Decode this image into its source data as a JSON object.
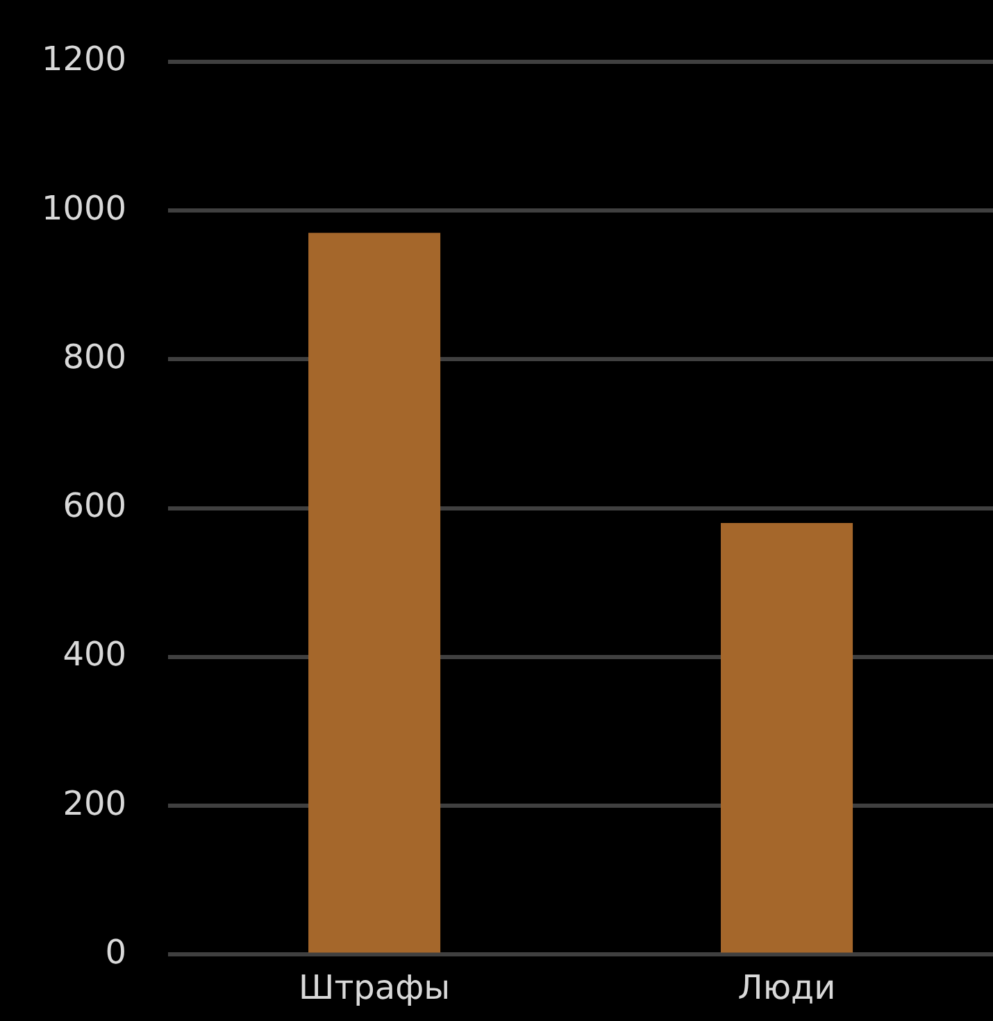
{
  "chart_data": {
    "type": "bar",
    "categories": [
      "Штрафы",
      "Люди"
    ],
    "series": [
      {
        "color": "#a5672b",
        "values": [
          970,
          580
        ]
      }
    ],
    "ylim": [
      0,
      1200
    ],
    "yticks": [
      0,
      200,
      400,
      600,
      800,
      1000,
      1200
    ],
    "grid": "y",
    "legend": false
  }
}
